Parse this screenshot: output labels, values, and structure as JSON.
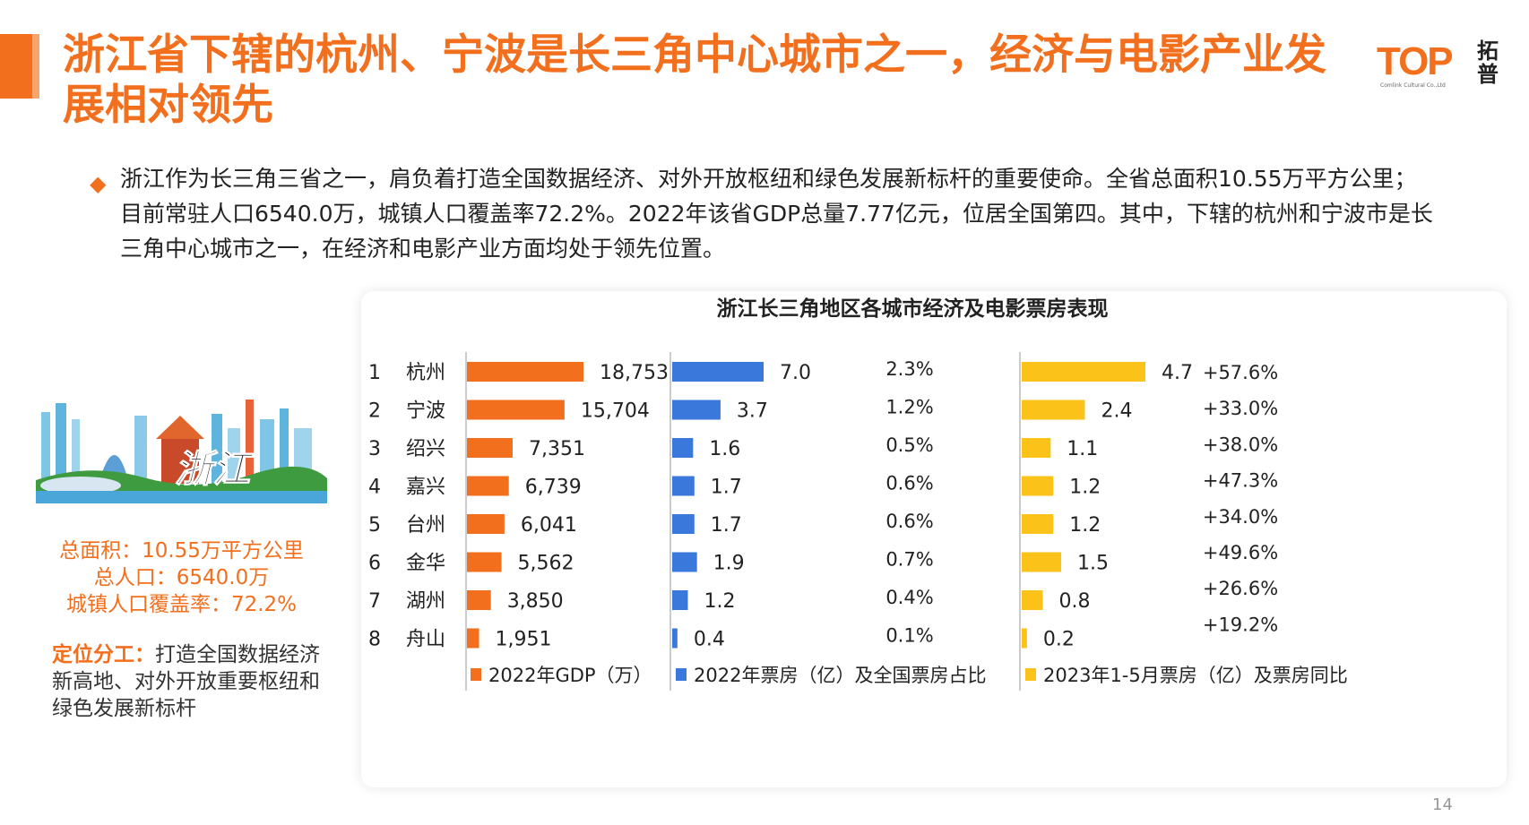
{
  "header": {
    "title": "浙江省下辖的杭州、宁波是长三角中心城市之一，经济与电影产业发展相对领先",
    "logo_text": "TOP",
    "logo_cn": "拓普",
    "logo_sub": "Comlink Cultural Co.,Ltd"
  },
  "intro": {
    "text": "浙江作为长三角三省之一，肩负着打造全国数据经济、对外开放枢纽和绿色发展新标杆的重要使命。全省总面积10.55万平方公里；目前常驻人口6540.0万，城镇人口覆盖率72.2%。2022年该省GDP总量7.77亿元，位居全国第四。其中，下辖的杭州和宁波市是长三角中心城市之一，在经济和电影产业方面均处于领先位置。"
  },
  "left_panel": {
    "illustration_label": "浙江",
    "stats": [
      "总面积：10.55万平方公里",
      "总人口：6540.0万",
      "城镇人口覆盖率：72.2%"
    ],
    "role_label": "定位分工：",
    "role_text": "打造全国数据经济新高地、对外开放重要枢纽和绿色发展新标杆"
  },
  "chart_data": {
    "type": "bar",
    "orientation": "horizontal",
    "title": "浙江长三角地区各城市经济及电影票房表现",
    "ranks": [
      "1",
      "2",
      "3",
      "4",
      "5",
      "6",
      "7",
      "8"
    ],
    "categories": [
      "杭州",
      "宁波",
      "绍兴",
      "嘉兴",
      "台州",
      "金华",
      "湖州",
      "舟山"
    ],
    "series": [
      {
        "name": "2022年GDP（万）",
        "values": [
          18753,
          15704,
          7351,
          6739,
          6041,
          5562,
          3850,
          1951
        ],
        "labels": [
          "18,753",
          "15,704",
          "7,351",
          "6,739",
          "6,041",
          "5,562",
          "3,850",
          "1,951"
        ],
        "color": "#f26f1e"
      },
      {
        "name": "2022年票房（亿）及全国票房占比",
        "values": [
          7.0,
          3.7,
          1.6,
          1.7,
          1.7,
          1.9,
          1.2,
          0.4
        ],
        "labels": [
          "7.0",
          "3.7",
          "1.6",
          "1.7",
          "1.7",
          "1.9",
          "1.2",
          "0.4"
        ],
        "share": [
          "2.3%",
          "1.2%",
          "0.5%",
          "0.6%",
          "0.6%",
          "0.7%",
          "0.4%",
          "0.1%"
        ],
        "color": "#3a78dc"
      },
      {
        "name": "2023年1-5月票房（亿）及票房同比",
        "values": [
          4.7,
          2.4,
          1.1,
          1.2,
          1.2,
          1.5,
          0.8,
          0.2
        ],
        "labels": [
          "4.7",
          "2.4",
          "1.1",
          "1.2",
          "1.2",
          "1.5",
          "0.8",
          "0.2"
        ],
        "yoy": [
          "+57.6%",
          "+33.0%",
          "+38.0%",
          "+47.3%",
          "+34.0%",
          "+49.6%",
          "+26.6%",
          "+19.2%"
        ],
        "color": "#fbc21a"
      }
    ]
  },
  "footer": {
    "page_number": "14"
  }
}
